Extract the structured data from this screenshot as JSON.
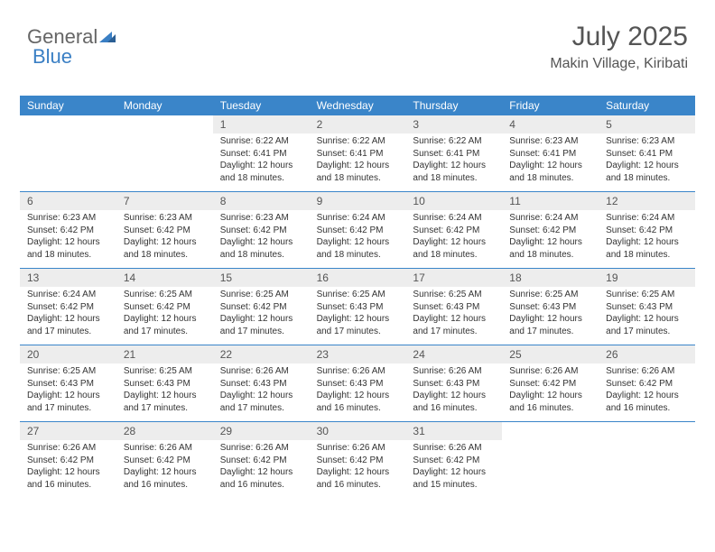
{
  "logo": {
    "text1": "General",
    "text2": "Blue",
    "accent_color": "#3a7fc4"
  },
  "title": "July 2025",
  "location": "Makin Village, Kiribati",
  "colors": {
    "header_bg": "#3a85c9",
    "header_text": "#ffffff",
    "daynum_bg": "#ededed",
    "text": "#555555",
    "body_text": "#333333"
  },
  "weekdays": [
    "Sunday",
    "Monday",
    "Tuesday",
    "Wednesday",
    "Thursday",
    "Friday",
    "Saturday"
  ],
  "weeks": [
    [
      null,
      null,
      {
        "n": "1",
        "sr": "6:22 AM",
        "ss": "6:41 PM",
        "dl": "12 hours and 18 minutes."
      },
      {
        "n": "2",
        "sr": "6:22 AM",
        "ss": "6:41 PM",
        "dl": "12 hours and 18 minutes."
      },
      {
        "n": "3",
        "sr": "6:22 AM",
        "ss": "6:41 PM",
        "dl": "12 hours and 18 minutes."
      },
      {
        "n": "4",
        "sr": "6:23 AM",
        "ss": "6:41 PM",
        "dl": "12 hours and 18 minutes."
      },
      {
        "n": "5",
        "sr": "6:23 AM",
        "ss": "6:41 PM",
        "dl": "12 hours and 18 minutes."
      }
    ],
    [
      {
        "n": "6",
        "sr": "6:23 AM",
        "ss": "6:42 PM",
        "dl": "12 hours and 18 minutes."
      },
      {
        "n": "7",
        "sr": "6:23 AM",
        "ss": "6:42 PM",
        "dl": "12 hours and 18 minutes."
      },
      {
        "n": "8",
        "sr": "6:23 AM",
        "ss": "6:42 PM",
        "dl": "12 hours and 18 minutes."
      },
      {
        "n": "9",
        "sr": "6:24 AM",
        "ss": "6:42 PM",
        "dl": "12 hours and 18 minutes."
      },
      {
        "n": "10",
        "sr": "6:24 AM",
        "ss": "6:42 PM",
        "dl": "12 hours and 18 minutes."
      },
      {
        "n": "11",
        "sr": "6:24 AM",
        "ss": "6:42 PM",
        "dl": "12 hours and 18 minutes."
      },
      {
        "n": "12",
        "sr": "6:24 AM",
        "ss": "6:42 PM",
        "dl": "12 hours and 18 minutes."
      }
    ],
    [
      {
        "n": "13",
        "sr": "6:24 AM",
        "ss": "6:42 PM",
        "dl": "12 hours and 17 minutes."
      },
      {
        "n": "14",
        "sr": "6:25 AM",
        "ss": "6:42 PM",
        "dl": "12 hours and 17 minutes."
      },
      {
        "n": "15",
        "sr": "6:25 AM",
        "ss": "6:42 PM",
        "dl": "12 hours and 17 minutes."
      },
      {
        "n": "16",
        "sr": "6:25 AM",
        "ss": "6:43 PM",
        "dl": "12 hours and 17 minutes."
      },
      {
        "n": "17",
        "sr": "6:25 AM",
        "ss": "6:43 PM",
        "dl": "12 hours and 17 minutes."
      },
      {
        "n": "18",
        "sr": "6:25 AM",
        "ss": "6:43 PM",
        "dl": "12 hours and 17 minutes."
      },
      {
        "n": "19",
        "sr": "6:25 AM",
        "ss": "6:43 PM",
        "dl": "12 hours and 17 minutes."
      }
    ],
    [
      {
        "n": "20",
        "sr": "6:25 AM",
        "ss": "6:43 PM",
        "dl": "12 hours and 17 minutes."
      },
      {
        "n": "21",
        "sr": "6:25 AM",
        "ss": "6:43 PM",
        "dl": "12 hours and 17 minutes."
      },
      {
        "n": "22",
        "sr": "6:26 AM",
        "ss": "6:43 PM",
        "dl": "12 hours and 17 minutes."
      },
      {
        "n": "23",
        "sr": "6:26 AM",
        "ss": "6:43 PM",
        "dl": "12 hours and 16 minutes."
      },
      {
        "n": "24",
        "sr": "6:26 AM",
        "ss": "6:43 PM",
        "dl": "12 hours and 16 minutes."
      },
      {
        "n": "25",
        "sr": "6:26 AM",
        "ss": "6:42 PM",
        "dl": "12 hours and 16 minutes."
      },
      {
        "n": "26",
        "sr": "6:26 AM",
        "ss": "6:42 PM",
        "dl": "12 hours and 16 minutes."
      }
    ],
    [
      {
        "n": "27",
        "sr": "6:26 AM",
        "ss": "6:42 PM",
        "dl": "12 hours and 16 minutes."
      },
      {
        "n": "28",
        "sr": "6:26 AM",
        "ss": "6:42 PM",
        "dl": "12 hours and 16 minutes."
      },
      {
        "n": "29",
        "sr": "6:26 AM",
        "ss": "6:42 PM",
        "dl": "12 hours and 16 minutes."
      },
      {
        "n": "30",
        "sr": "6:26 AM",
        "ss": "6:42 PM",
        "dl": "12 hours and 16 minutes."
      },
      {
        "n": "31",
        "sr": "6:26 AM",
        "ss": "6:42 PM",
        "dl": "12 hours and 15 minutes."
      },
      null,
      null
    ]
  ],
  "labels": {
    "sunrise": "Sunrise:",
    "sunset": "Sunset:",
    "daylight": "Daylight:"
  }
}
